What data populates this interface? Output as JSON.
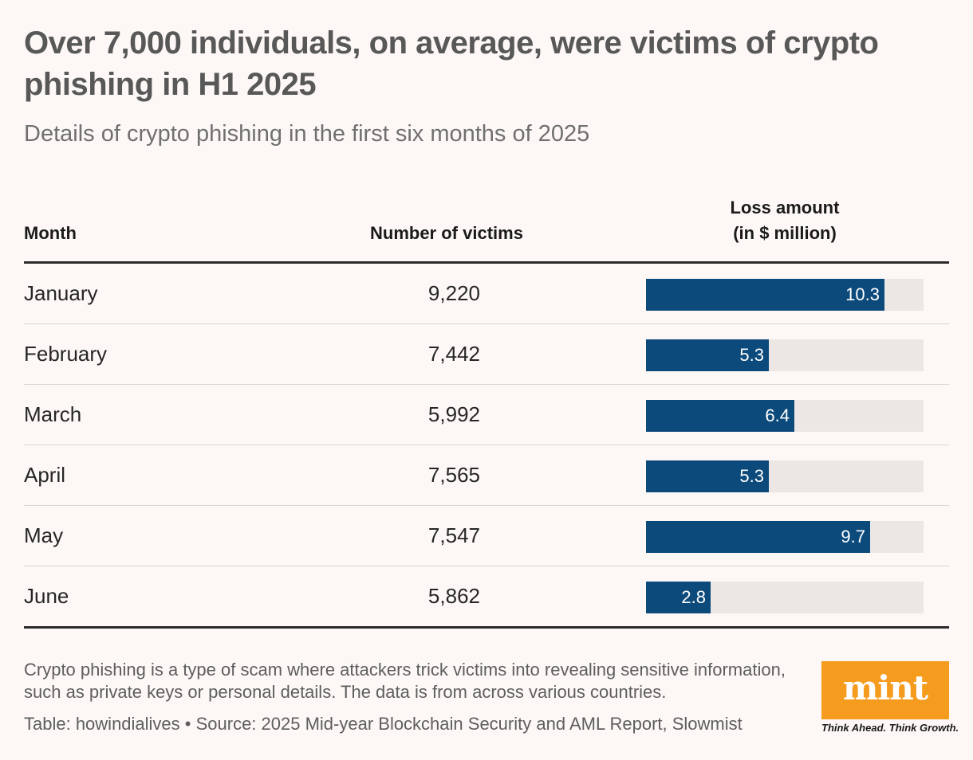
{
  "title": "Over 7,000 individuals, on average, were victims of crypto phishing in H1 2025",
  "subtitle": "Details of crypto phishing in the first six months of 2025",
  "columns": {
    "month": "Month",
    "victims": "Number of victims",
    "loss_line1": "Loss amount",
    "loss_line2": "(in $ million)"
  },
  "rows": [
    {
      "month": "January",
      "victims": "9,220",
      "loss": "10.3"
    },
    {
      "month": "February",
      "victims": "7,442",
      "loss": "5.3"
    },
    {
      "month": "March",
      "victims": "5,992",
      "loss": "6.4"
    },
    {
      "month": "April",
      "victims": "7,565",
      "loss": "5.3"
    },
    {
      "month": "May",
      "victims": "7,547",
      "loss": "9.7"
    },
    {
      "month": "June",
      "victims": "5,862",
      "loss": "2.8"
    }
  ],
  "note": "Crypto phishing is a type of scam where attackers trick victims into revealing sensitive information, such as private keys or personal details. The data is from across various countries.",
  "source": "Table: howindialives • Source: 2025 Mid-year Blockchain Security and AML Report, Slowmist",
  "logo": {
    "word": "mint",
    "tagline": "Think Ahead. Think Growth."
  },
  "colors": {
    "bar": "#0c4a7c",
    "track": "#ece7e5",
    "background": "#fdf8f6",
    "logo": "#f59b1e"
  },
  "chart_data": {
    "type": "table",
    "title": "Over 7,000 individuals, on average, were victims of crypto phishing in H1 2025",
    "subtitle": "Details of crypto phishing in the first six months of 2025",
    "categories": [
      "January",
      "February",
      "March",
      "April",
      "May",
      "June"
    ],
    "series": [
      {
        "name": "Number of victims",
        "values": [
          9220,
          7442,
          5992,
          7565,
          7547,
          5862
        ]
      },
      {
        "name": "Loss amount (in $ million)",
        "values": [
          10.3,
          5.3,
          6.4,
          5.3,
          9.7,
          2.8
        ]
      }
    ],
    "bar_series": "Loss amount (in $ million)",
    "bar_max": 12
  }
}
